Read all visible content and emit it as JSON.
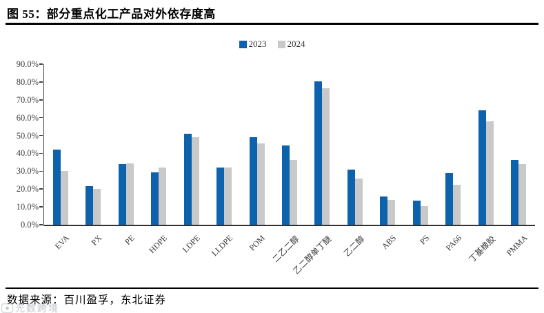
{
  "figure": {
    "title": "图 55：部分重点化工产品对外依存度高"
  },
  "chart_data": {
    "type": "bar",
    "title": "部分重点化工产品对外依存度",
    "categories": [
      "EVA",
      "PX",
      "PE",
      "HDPE",
      "LDPE",
      "LLDPE",
      "POM",
      "二乙二醇",
      "乙二醇单丁醚",
      "乙二醇",
      "ABS",
      "PS",
      "PA66",
      "丁基橡胶",
      "PMMA"
    ],
    "series": [
      {
        "name": "2023",
        "color": "#0D62AD",
        "values": [
          42.0,
          21.5,
          34.0,
          29.5,
          51.0,
          32.0,
          49.0,
          44.5,
          80.5,
          31.0,
          16.0,
          13.5,
          29.0,
          64.0,
          36.5
        ]
      },
      {
        "name": "2024",
        "color": "#C9C9C9",
        "values": [
          30.0,
          20.0,
          34.5,
          32.0,
          49.0,
          32.0,
          45.5,
          36.5,
          76.5,
          26.0,
          14.0,
          10.5,
          22.5,
          58.0,
          34.0
        ]
      }
    ],
    "unit": "%",
    "ylim": [
      0,
      90
    ],
    "ytick_step": 10,
    "ytick_labels": [
      "0.0%",
      "10.0%",
      "20.0%",
      "30.0%",
      "40.0%",
      "50.0%",
      "60.0%",
      "70.0%",
      "80.0%",
      "90.0%"
    ],
    "xlabel": "",
    "ylabel": "",
    "grid": false,
    "legend_position": "top-center",
    "x_label_rotation": -45
  },
  "footer": {
    "source_label": "数据来源：百川盈孚，东北证券"
  },
  "watermark": {
    "text": "光数跨境"
  }
}
